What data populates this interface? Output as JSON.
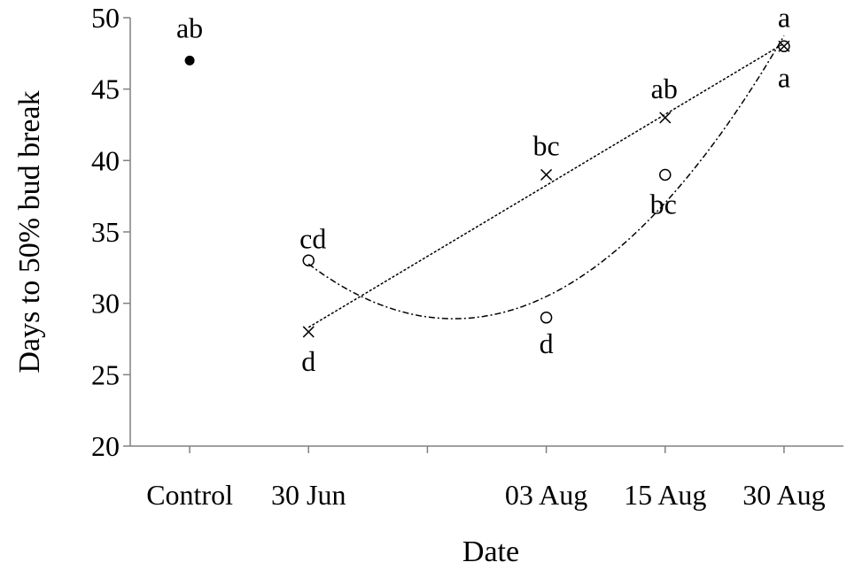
{
  "chart_data": {
    "type": "scatter",
    "xlabel": "Date",
    "ylabel": "Days to 50% bud break",
    "ylim": [
      20,
      50
    ],
    "yticks": [
      20,
      25,
      30,
      35,
      40,
      45,
      50
    ],
    "x_categories": [
      "Control",
      "30 Jun",
      "",
      "03 Aug",
      "15 Aug",
      "30 Aug"
    ],
    "control": {
      "x": "Control",
      "y": 47,
      "label": "ab",
      "marker": "filled-circle"
    },
    "series": [
      {
        "marker": "cross",
        "trendline": "linear",
        "points": [
          {
            "x": "30 Jun",
            "y": 28,
            "label": "d"
          },
          {
            "x": "03 Aug",
            "y": 39,
            "label": "bc"
          },
          {
            "x": "15 Aug",
            "y": 43,
            "label": "ab"
          },
          {
            "x": "30 Aug",
            "y": 48,
            "label": "a"
          }
        ]
      },
      {
        "marker": "open-circle",
        "trendline": "polynomial",
        "points": [
          {
            "x": "30 Jun",
            "y": 33,
            "label": "cd"
          },
          {
            "x": "03 Aug",
            "y": 29,
            "label": "d"
          },
          {
            "x": "15 Aug",
            "y": 39,
            "label": "bc"
          },
          {
            "x": "30 Aug",
            "y": 48,
            "label": "a"
          }
        ]
      }
    ]
  }
}
